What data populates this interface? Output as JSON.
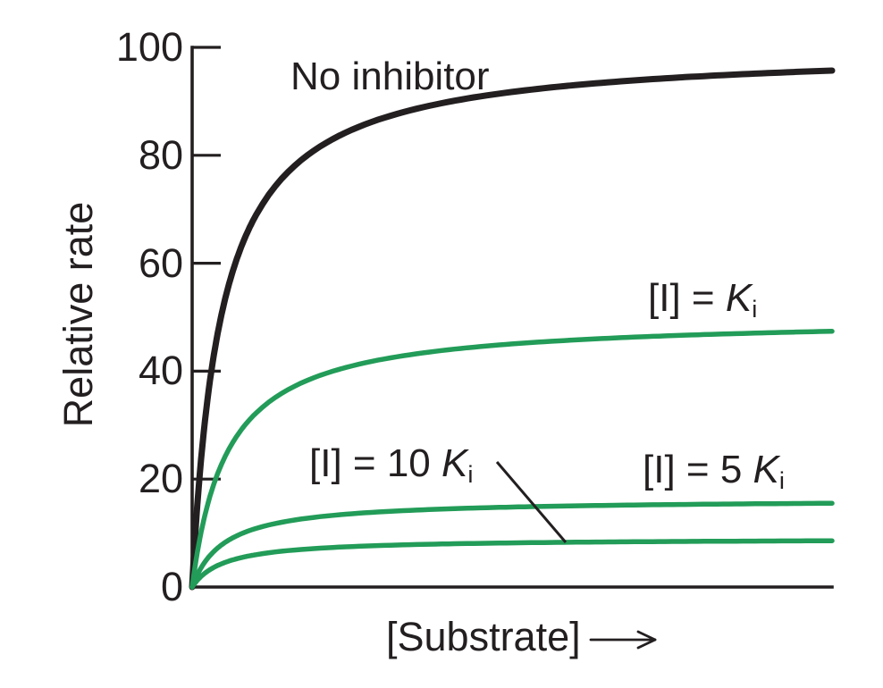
{
  "figure": {
    "background": "#ffffff",
    "ink_color": "#231f20",
    "green_color": "#229c58"
  },
  "chart_data": {
    "type": "line",
    "title": "",
    "xlabel": "[Substrate]",
    "ylabel": "Relative rate",
    "grid": false,
    "legend": "inline-labels",
    "x_axis": {
      "label": "[Substrate]",
      "has_arrow": true,
      "ticks": [],
      "range_units": [
        0,
        10
      ]
    },
    "y_axis": {
      "range": [
        0,
        100
      ],
      "ticks": [
        100,
        80,
        60,
        40,
        20,
        0
      ],
      "tick_labels": [
        "100",
        "80",
        "60",
        "40",
        "20",
        "0"
      ]
    },
    "series": [
      {
        "name": "No inhibitor",
        "color": "#231f20",
        "model": "michaelis_menten",
        "vmax": 100,
        "km_units": 0.45,
        "plateau_at_right_edge": 95,
        "points": [
          [
            0,
            0
          ],
          [
            0.5,
            52.6
          ],
          [
            1,
            69
          ],
          [
            2,
            81.6
          ],
          [
            4,
            89.9
          ],
          [
            6,
            93
          ],
          [
            8,
            94.7
          ],
          [
            10,
            95.7
          ]
        ]
      },
      {
        "name": "[I] = Ki",
        "color": "#229c58",
        "model": "michaelis_menten",
        "vmax": 50,
        "km_units": 0.55,
        "plateau_at_right_edge": 47.5,
        "points": [
          [
            0,
            0
          ],
          [
            0.5,
            23.8
          ],
          [
            1,
            32.3
          ],
          [
            2,
            39.2
          ],
          [
            4,
            44
          ],
          [
            6,
            45.8
          ],
          [
            8,
            46.8
          ],
          [
            10,
            47.4
          ]
        ]
      },
      {
        "name": "[I] = 5 Ki",
        "color": "#229c58",
        "model": "michaelis_menten",
        "vmax": 16.3,
        "km_units": 0.5,
        "plateau_at_right_edge": 15.5,
        "points": [
          [
            0,
            0
          ],
          [
            0.5,
            8.2
          ],
          [
            1,
            10.9
          ],
          [
            2,
            13
          ],
          [
            4,
            14.5
          ],
          [
            6,
            15
          ],
          [
            8,
            15.3
          ],
          [
            10,
            15.5
          ]
        ]
      },
      {
        "name": "[I] = 10 Ki",
        "color": "#229c58",
        "model": "michaelis_menten",
        "vmax": 9,
        "km_units": 0.5,
        "plateau_at_right_edge": 8.6,
        "points": [
          [
            0,
            0
          ],
          [
            0.5,
            4.5
          ],
          [
            1,
            6
          ],
          [
            2,
            7.2
          ],
          [
            4,
            8
          ],
          [
            6,
            8.3
          ],
          [
            8,
            8.5
          ],
          [
            10,
            8.6
          ]
        ]
      }
    ]
  },
  "labels": {
    "no_inhibitor": "No inhibitor",
    "ki": {
      "prefix": "[I] = ",
      "symbol": "K",
      "subscript": "i"
    },
    "ki10": {
      "prefix": "[I] = 10 ",
      "symbol": "K",
      "subscript": "i"
    },
    "ki5": {
      "prefix": "[I] = 5 ",
      "symbol": "K",
      "subscript": "i"
    },
    "y_axis": "Relative rate",
    "x_axis": "[Substrate]"
  }
}
